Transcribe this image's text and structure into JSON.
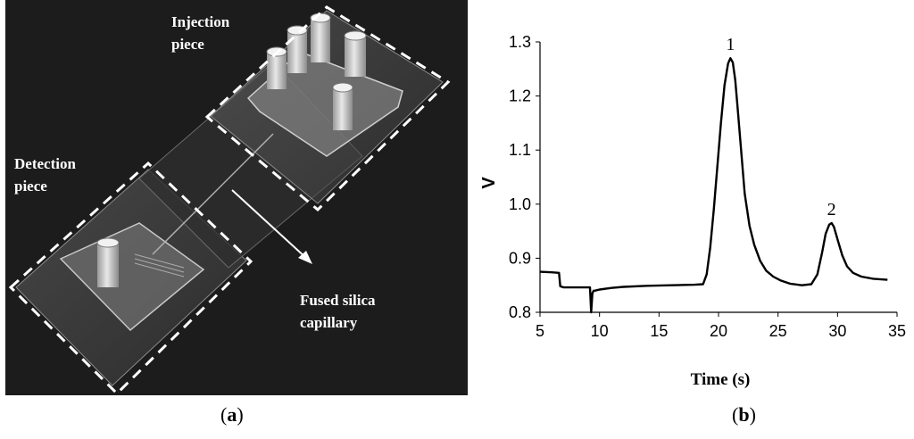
{
  "panel_a": {
    "caption_letter": "a",
    "labels": {
      "injection_line1": "Injection",
      "injection_line2": "piece",
      "detection_line1": "Detection",
      "detection_line2": "piece",
      "capillary_line1": "Fused silica",
      "capillary_line2": "capillary"
    },
    "colors": {
      "background": "#1c1c1c",
      "label": "#ffffff",
      "outline": "#ffffff"
    }
  },
  "panel_b": {
    "caption_letter": "b"
  },
  "chart_data": {
    "type": "line",
    "xlabel": "Time (s)",
    "ylabel": "V",
    "xlim": [
      5,
      35
    ],
    "ylim": [
      0.8,
      1.3
    ],
    "xticks": [
      5,
      10,
      15,
      20,
      25,
      30,
      35
    ],
    "yticks": [
      0.8,
      0.9,
      1.0,
      1.1,
      1.2,
      1.3
    ],
    "ytick_labels": [
      "0.8",
      "0.9",
      "1.0",
      "1.1",
      "1.2",
      "1.3"
    ],
    "grid": false,
    "line_color": "#000000",
    "annotations": [
      {
        "text": "1",
        "x": 21.0,
        "y": 1.285
      },
      {
        "text": "2",
        "x": 29.5,
        "y": 0.98
      }
    ],
    "series": [
      {
        "x": [
          5.0,
          6.0,
          6.6,
          6.7,
          7.0,
          8.0,
          9.2,
          9.3,
          9.4,
          9.5,
          9.6,
          10.0,
          11.0,
          12.0,
          14.0,
          16.0,
          18.0,
          18.7,
          19.0,
          19.3,
          19.6,
          19.9,
          20.2,
          20.5,
          20.8,
          21.0,
          21.2,
          21.4,
          21.6,
          21.9,
          22.2,
          22.6,
          23.0,
          23.5,
          24.0,
          24.6,
          25.2,
          26.0,
          27.0,
          27.8,
          28.3,
          28.7,
          29.0,
          29.3,
          29.5,
          29.7,
          30.0,
          30.4,
          30.8,
          31.3,
          32.0,
          33.0,
          34.2
        ],
        "y": [
          0.875,
          0.874,
          0.873,
          0.848,
          0.846,
          0.846,
          0.846,
          0.8,
          0.835,
          0.84,
          0.84,
          0.842,
          0.845,
          0.847,
          0.849,
          0.85,
          0.851,
          0.852,
          0.87,
          0.92,
          0.99,
          1.07,
          1.15,
          1.22,
          1.26,
          1.27,
          1.262,
          1.23,
          1.18,
          1.1,
          1.02,
          0.96,
          0.925,
          0.895,
          0.877,
          0.866,
          0.859,
          0.853,
          0.85,
          0.852,
          0.87,
          0.91,
          0.945,
          0.962,
          0.965,
          0.958,
          0.935,
          0.905,
          0.885,
          0.873,
          0.866,
          0.862,
          0.86
        ]
      }
    ]
  }
}
